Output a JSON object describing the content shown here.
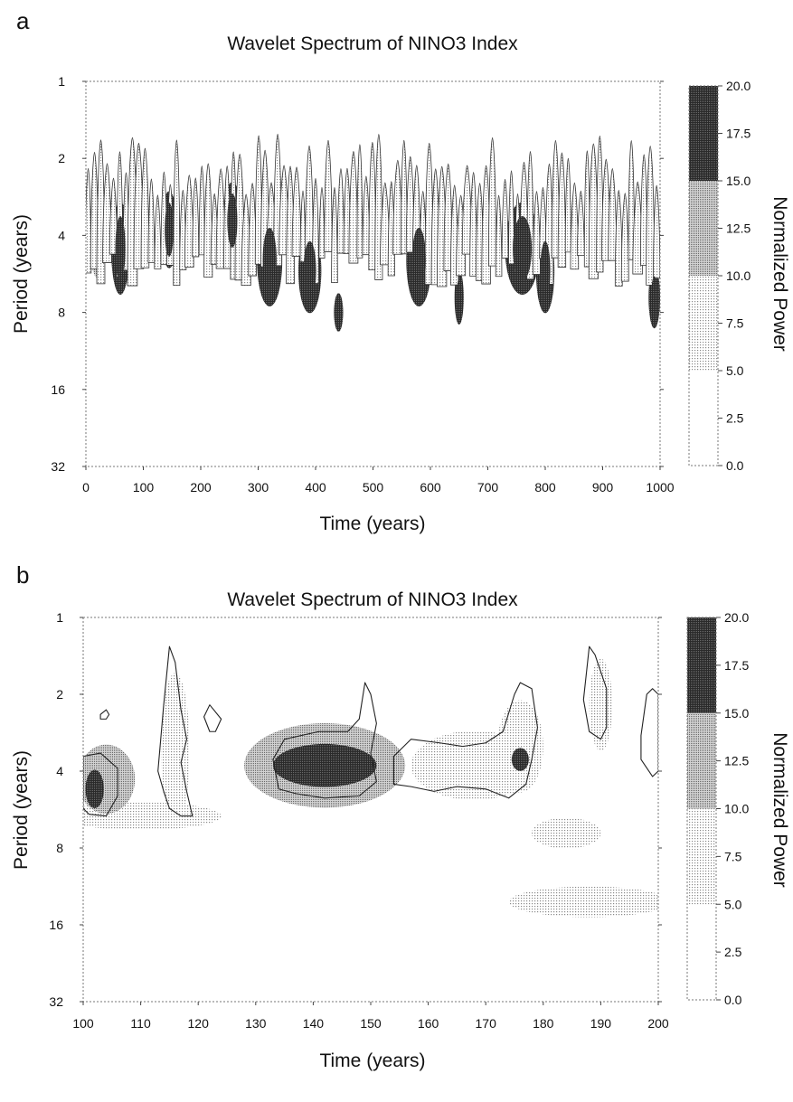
{
  "chart_data": [
    {
      "panel_label": "a",
      "type": "heatmap",
      "title": "Wavelet Spectrum of NINO3 Index",
      "xlabel": "Time (years)",
      "ylabel": "Period (years)",
      "xlim": [
        0,
        1000
      ],
      "ylim": [
        1,
        32
      ],
      "y_scale": "log2",
      "y_inverted": true,
      "x_ticks": [
        0,
        100,
        200,
        300,
        400,
        500,
        600,
        700,
        800,
        900,
        1000
      ],
      "y_ticks": [
        1,
        2,
        4,
        8,
        16,
        32
      ],
      "colorbar": {
        "label": "Normalized Power",
        "levels": [
          0.0,
          2.5,
          5.0,
          7.5,
          10.0,
          12.5,
          15.0,
          17.5,
          20.0
        ],
        "level_labels": [
          "0.0",
          "2.5",
          "5.0",
          "7.5",
          "10.0",
          "12.5",
          "15.0",
          "17.5",
          "20.0"
        ],
        "bands": [
          {
            "from": 0.0,
            "to": 5.0,
            "color": "#ffffff"
          },
          {
            "from": 5.0,
            "to": 10.0,
            "color": "#e6e6e6"
          },
          {
            "from": 10.0,
            "to": 15.0,
            "color": "#b4b4b4"
          },
          {
            "from": 15.0,
            "to": 20.0,
            "color": "#3e3e3e"
          }
        ]
      },
      "regions": [
        {
          "t": 20,
          "p": 4.0,
          "dt": 14,
          "dp": 0.55,
          "power": 14
        },
        {
          "t": 60,
          "p": 4.5,
          "dt": 16,
          "dp": 0.6,
          "power": 18
        },
        {
          "t": 145,
          "p": 3.8,
          "dt": 14,
          "dp": 0.5,
          "power": 17
        },
        {
          "t": 255,
          "p": 3.5,
          "dt": 16,
          "dp": 0.5,
          "power": 16
        },
        {
          "t": 320,
          "p": 5.0,
          "dt": 22,
          "dp": 0.6,
          "power": 18
        },
        {
          "t": 390,
          "p": 5.5,
          "dt": 20,
          "dp": 0.55,
          "power": 17
        },
        {
          "t": 440,
          "p": 8.0,
          "dt": 8,
          "dp": 0.25,
          "power": 16
        },
        {
          "t": 580,
          "p": 5.0,
          "dt": 22,
          "dp": 0.6,
          "power": 16
        },
        {
          "t": 650,
          "p": 7.0,
          "dt": 8,
          "dp": 0.35,
          "power": 16
        },
        {
          "t": 760,
          "p": 4.5,
          "dt": 30,
          "dp": 0.6,
          "power": 18
        },
        {
          "t": 800,
          "p": 5.5,
          "dt": 16,
          "dp": 0.55,
          "power": 17
        },
        {
          "t": 990,
          "p": 7.0,
          "dt": 10,
          "dp": 0.4,
          "power": 16
        }
      ]
    },
    {
      "panel_label": "b",
      "type": "heatmap",
      "title": "Wavelet Spectrum of NINO3 Index",
      "xlabel": "Time (years)",
      "ylabel": "Period (years)",
      "xlim": [
        100,
        200
      ],
      "ylim": [
        1,
        32
      ],
      "y_scale": "log2",
      "y_inverted": true,
      "x_ticks": [
        100,
        110,
        120,
        130,
        140,
        150,
        160,
        170,
        180,
        190,
        200
      ],
      "y_ticks": [
        1,
        2,
        4,
        8,
        16,
        32
      ],
      "colorbar": {
        "label": "Normalized Power",
        "levels": [
          0.0,
          2.5,
          5.0,
          7.5,
          10.0,
          12.5,
          15.0,
          17.5,
          20.0
        ],
        "level_labels": [
          "0.0",
          "2.5",
          "5.0",
          "7.5",
          "10.0",
          "12.5",
          "15.0",
          "17.5",
          "20.0"
        ],
        "bands": [
          {
            "from": 0.0,
            "to": 5.0,
            "color": "#ffffff"
          },
          {
            "from": 5.0,
            "to": 10.0,
            "color": "#e6e6e6"
          },
          {
            "from": 10.0,
            "to": 15.0,
            "color": "#b4b4b4"
          },
          {
            "from": 15.0,
            "to": 20.0,
            "color": "#3e3e3e"
          }
        ]
      },
      "regions": [
        {
          "t": 102,
          "p": 4.7,
          "dt": 1.6,
          "dp": 0.25,
          "power": 17
        },
        {
          "t": 142,
          "p": 3.8,
          "dt": 9,
          "dp": 0.28,
          "power": 19
        },
        {
          "t": 176,
          "p": 3.6,
          "dt": 1.5,
          "dp": 0.15,
          "power": 16
        },
        {
          "t": 104,
          "p": 4.3,
          "dt": 5,
          "dp": 0.45,
          "power": 11
        },
        {
          "t": 142,
          "p": 3.8,
          "dt": 14,
          "dp": 0.55,
          "power": 11
        },
        {
          "t": 168,
          "p": 3.8,
          "dt": 11,
          "dp": 0.45,
          "power": 8
        },
        {
          "t": 176,
          "p": 3.2,
          "dt": 4,
          "dp": 0.6,
          "power": 9
        },
        {
          "t": 116,
          "p": 3.3,
          "dt": 2.5,
          "dp": 1.0,
          "power": 7
        },
        {
          "t": 110,
          "p": 6.0,
          "dt": 14,
          "dp": 0.18,
          "power": 6
        },
        {
          "t": 184,
          "p": 7.0,
          "dt": 6,
          "dp": 0.2,
          "power": 6
        },
        {
          "t": 188,
          "p": 13.0,
          "dt": 14,
          "dp": 0.2,
          "power": 6
        },
        {
          "t": 190,
          "p": 2.2,
          "dt": 2,
          "dp": 0.6,
          "power": 6
        }
      ],
      "contours_approx": [
        [
          [
            100,
            3.5
          ],
          [
            103,
            3.4
          ],
          [
            106,
            3.9
          ],
          [
            106,
            5.0
          ],
          [
            104,
            6.0
          ],
          [
            101,
            5.9
          ],
          [
            100,
            5.6
          ]
        ],
        [
          [
            133,
            3.6
          ],
          [
            135,
            3.0
          ],
          [
            141,
            2.8
          ],
          [
            146,
            2.8
          ],
          [
            148,
            2.5
          ],
          [
            149,
            1.8
          ],
          [
            150,
            2.0
          ],
          [
            151,
            2.6
          ],
          [
            150,
            3.4
          ],
          [
            151,
            4.4
          ],
          [
            148,
            5.0
          ],
          [
            142,
            5.1
          ],
          [
            137,
            4.9
          ],
          [
            134,
            4.7
          ]
        ],
        [
          [
            154,
            3.5
          ],
          [
            157,
            3.0
          ],
          [
            162,
            3.1
          ],
          [
            166,
            3.2
          ],
          [
            170,
            3.1
          ],
          [
            173,
            2.8
          ],
          [
            175,
            2.0
          ],
          [
            176,
            1.8
          ],
          [
            178,
            1.9
          ],
          [
            179,
            2.7
          ],
          [
            178,
            3.6
          ],
          [
            177,
            4.5
          ],
          [
            174,
            5.1
          ],
          [
            170,
            4.7
          ],
          [
            165,
            4.6
          ],
          [
            161,
            4.8
          ],
          [
            157,
            4.6
          ],
          [
            154,
            4.5
          ]
        ],
        [
          [
            113,
            4.0
          ],
          [
            114,
            2.2
          ],
          [
            115,
            1.3
          ],
          [
            116,
            1.5
          ],
          [
            117,
            2.3
          ],
          [
            118,
            3.0
          ],
          [
            117,
            3.7
          ],
          [
            118,
            4.8
          ],
          [
            119,
            6.0
          ],
          [
            117,
            6.0
          ],
          [
            115,
            5.6
          ],
          [
            114,
            4.8
          ]
        ],
        [
          [
            187,
            2.1
          ],
          [
            188,
            1.3
          ],
          [
            189,
            1.4
          ],
          [
            191,
            1.9
          ],
          [
            191,
            2.7
          ],
          [
            190,
            3.0
          ],
          [
            188,
            2.8
          ]
        ],
        [
          [
            197,
            2.9
          ],
          [
            198,
            2.0
          ],
          [
            199,
            1.9
          ],
          [
            200,
            2.0
          ],
          [
            200,
            4.0
          ],
          [
            199,
            4.2
          ],
          [
            197,
            3.6
          ]
        ],
        [
          [
            103,
            2.4
          ],
          [
            104,
            2.3
          ],
          [
            104.5,
            2.4
          ],
          [
            104,
            2.5
          ],
          [
            103,
            2.5
          ]
        ],
        [
          [
            121,
            2.45
          ],
          [
            122,
            2.2
          ],
          [
            124,
            2.5
          ],
          [
            123,
            2.8
          ],
          [
            122,
            2.8
          ]
        ]
      ]
    }
  ]
}
